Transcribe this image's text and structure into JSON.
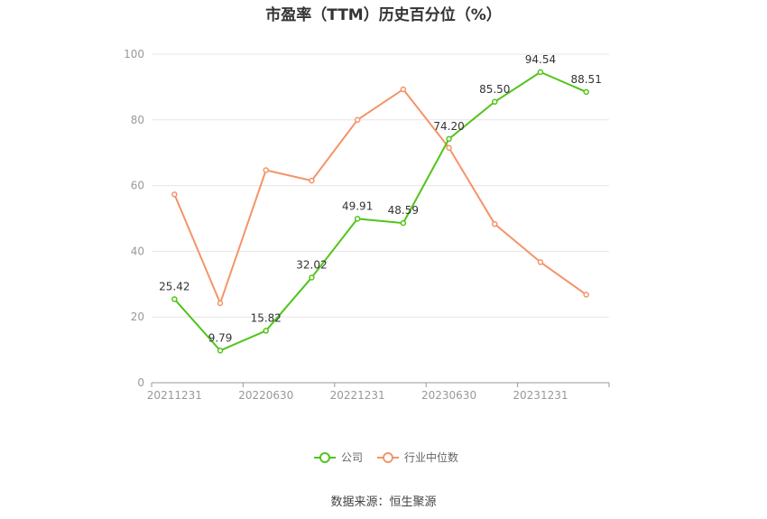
{
  "chart_data": {
    "type": "line",
    "title": "市盈率（TTM）历史百分位（%）",
    "x": [
      "20211231",
      "20220331",
      "20220630",
      "20220930",
      "20221231",
      "20230331",
      "20230630",
      "20230930",
      "20231231",
      "20240331"
    ],
    "x_tick_labels": [
      "20211231",
      "20220630",
      "20221231",
      "20230630",
      "20231231"
    ],
    "y_ticks": [
      "0",
      "20",
      "40",
      "60",
      "80",
      "100"
    ],
    "ylim": [
      0,
      100
    ],
    "grid": true,
    "legend_position": "bottom",
    "series": [
      {
        "name": "公司",
        "color": "#52c41a",
        "values": [
          25.42,
          9.79,
          15.82,
          32.02,
          49.91,
          48.59,
          74.2,
          85.5,
          94.54,
          88.51
        ],
        "labels": [
          "25.42",
          "9.79",
          "15.82",
          "32.02",
          "49.91",
          "48.59",
          "74.20",
          "85.50",
          "94.54",
          "88.51"
        ]
      },
      {
        "name": "行业中位数",
        "color": "#f4946a",
        "values": [
          57.3,
          24.2,
          64.7,
          61.5,
          80.0,
          89.3,
          71.5,
          48.3,
          36.7,
          26.8
        ]
      }
    ]
  },
  "source_text": "数据来源：恒生聚源"
}
